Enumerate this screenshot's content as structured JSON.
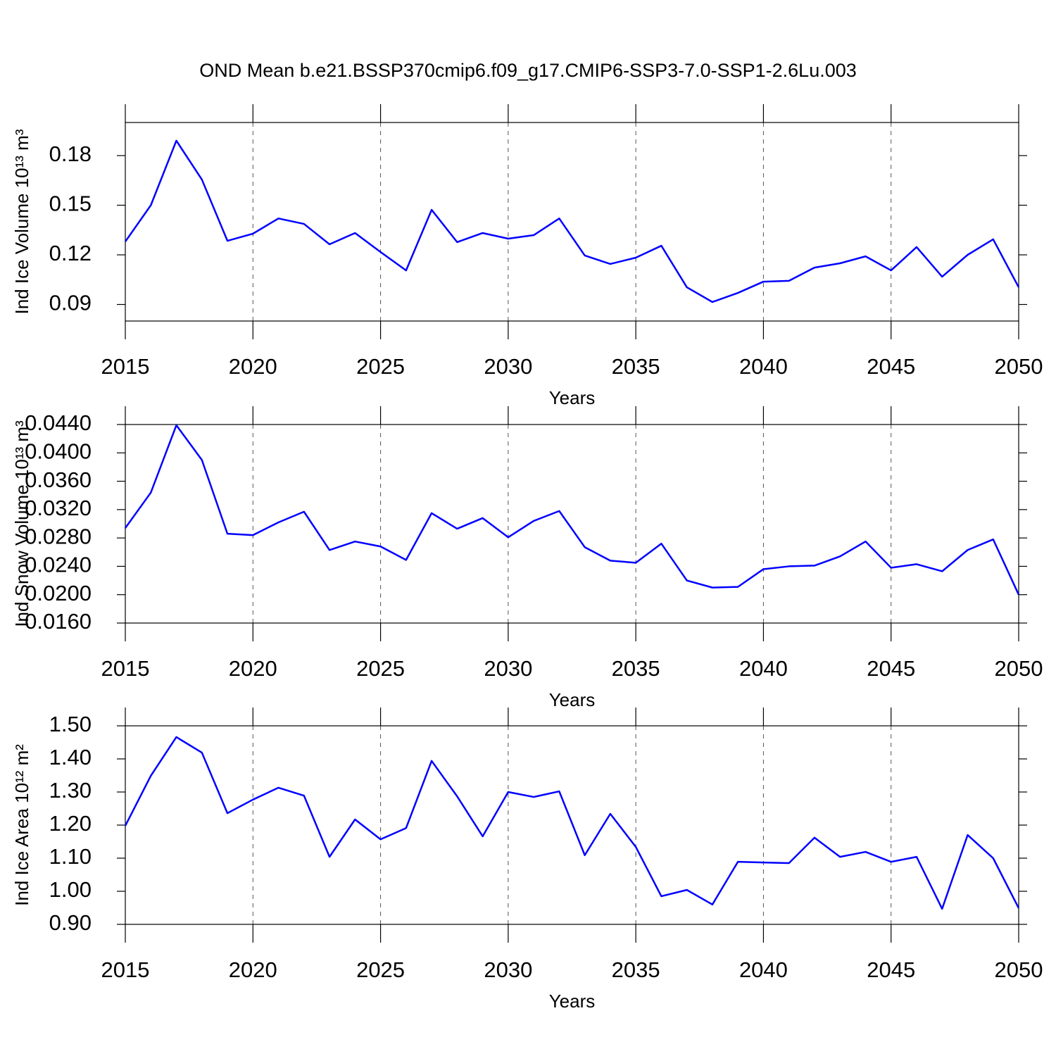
{
  "chart_data": [
    {
      "type": "line",
      "title": "OND Mean b.e21.BSSP370cmip6.f09_g17.CMIP6-SSP3-7.0-SSP1-2.6Lu.003",
      "xlabel": "Years",
      "ylabel": "Ind Ice Volume 10¹³ m³",
      "x": [
        2015,
        2016,
        2017,
        2018,
        2019,
        2020,
        2021,
        2022,
        2023,
        2024,
        2025,
        2026,
        2027,
        2028,
        2029,
        2030,
        2031,
        2032,
        2033,
        2034,
        2035,
        2036,
        2037,
        2038,
        2039,
        2040,
        2041,
        2042,
        2043,
        2044,
        2045,
        2046,
        2047,
        2048,
        2049,
        2050
      ],
      "xlim": [
        2015,
        2050
      ],
      "xticks": [
        2015,
        2020,
        2025,
        2030,
        2035,
        2040,
        2045,
        2050
      ],
      "ylim": [
        0.08,
        0.2
      ],
      "yticks": [
        0.09,
        0.12,
        0.15,
        0.18
      ],
      "grid": true,
      "series": [
        {
          "color": "#0000ff",
          "values": [
            0.128,
            0.15,
            0.189,
            0.1655,
            0.1285,
            0.1328,
            0.142,
            0.1387,
            0.1264,
            0.1332,
            0.1217,
            0.1106,
            0.1472,
            0.1277,
            0.1332,
            0.1298,
            0.1319,
            0.142,
            0.1196,
            0.1145,
            0.1183,
            0.1255,
            0.1004,
            0.0915,
            0.097,
            0.1038,
            0.1043,
            0.1123,
            0.1149,
            0.1191,
            0.1106,
            0.1247,
            0.1068,
            0.12,
            0.1294,
            0.1004
          ]
        }
      ]
    },
    {
      "type": "line",
      "xlabel": "Years",
      "ylabel": "Ind Snow Volume 10¹³ m³",
      "x": [
        2015,
        2016,
        2017,
        2018,
        2019,
        2020,
        2021,
        2022,
        2023,
        2024,
        2025,
        2026,
        2027,
        2028,
        2029,
        2030,
        2031,
        2032,
        2033,
        2034,
        2035,
        2036,
        2037,
        2038,
        2039,
        2040,
        2041,
        2042,
        2043,
        2044,
        2045,
        2046,
        2047,
        2048,
        2049,
        2050
      ],
      "xlim": [
        2015,
        2050
      ],
      "xticks": [
        2015,
        2020,
        2025,
        2030,
        2035,
        2040,
        2045,
        2050
      ],
      "ylim": [
        0.016,
        0.044
      ],
      "yticks": [
        {
          "value": 0.016,
          "label": "0.0160"
        },
        {
          "value": 0.02,
          "label": "0.0200"
        },
        {
          "value": 0.024,
          "label": "0.0240"
        },
        {
          "value": 0.028,
          "label": "0.0280"
        },
        {
          "value": 0.032,
          "label": "0.0320"
        },
        {
          "value": 0.036,
          "label": "0.0360"
        },
        {
          "value": 0.04,
          "label": "0.0400"
        },
        {
          "value": 0.044,
          "label": "0.0440"
        }
      ],
      "grid": true,
      "series": [
        {
          "color": "#0000ff",
          "values": [
            0.0294,
            0.0344,
            0.0439,
            0.039,
            0.0286,
            0.0284,
            0.0302,
            0.0317,
            0.0263,
            0.0275,
            0.0268,
            0.0249,
            0.0315,
            0.0293,
            0.0308,
            0.0281,
            0.0304,
            0.0318,
            0.0267,
            0.0248,
            0.0245,
            0.0272,
            0.022,
            0.021,
            0.0211,
            0.0236,
            0.024,
            0.0241,
            0.0254,
            0.0275,
            0.0238,
            0.0243,
            0.0233,
            0.0263,
            0.0278,
            0.02
          ]
        }
      ]
    },
    {
      "type": "line",
      "xlabel": "Years",
      "ylabel": "Ind Ice Area 10¹² m²",
      "x": [
        2015,
        2016,
        2017,
        2018,
        2019,
        2020,
        2021,
        2022,
        2023,
        2024,
        2025,
        2026,
        2027,
        2028,
        2029,
        2030,
        2031,
        2032,
        2033,
        2034,
        2035,
        2036,
        2037,
        2038,
        2039,
        2040,
        2041,
        2042,
        2043,
        2044,
        2045,
        2046,
        2047,
        2048,
        2049,
        2050
      ],
      "xlim": [
        2015,
        2050
      ],
      "xticks": [
        2015,
        2020,
        2025,
        2030,
        2035,
        2040,
        2045,
        2050
      ],
      "ylim": [
        0.9,
        1.5
      ],
      "yticks": [
        {
          "value": 0.9,
          "label": "0.90"
        },
        {
          "value": 1.0,
          "label": "1.00"
        },
        {
          "value": 1.1,
          "label": "1.10"
        },
        {
          "value": 1.2,
          "label": "1.20"
        },
        {
          "value": 1.3,
          "label": "1.30"
        },
        {
          "value": 1.4,
          "label": "1.40"
        },
        {
          "value": 1.5,
          "label": "1.50"
        }
      ],
      "grid": true,
      "series": [
        {
          "color": "#0000ff",
          "values": [
            1.198,
            1.349,
            1.466,
            1.419,
            1.236,
            1.277,
            1.313,
            1.289,
            1.104,
            1.217,
            1.157,
            1.191,
            1.394,
            1.287,
            1.166,
            1.3,
            1.285,
            1.302,
            1.109,
            1.234,
            1.134,
            0.985,
            1.004,
            0.96,
            1.089,
            1.087,
            1.085,
            1.162,
            1.104,
            1.119,
            1.089,
            1.104,
            0.947,
            1.17,
            1.1,
            0.949
          ]
        }
      ]
    }
  ]
}
